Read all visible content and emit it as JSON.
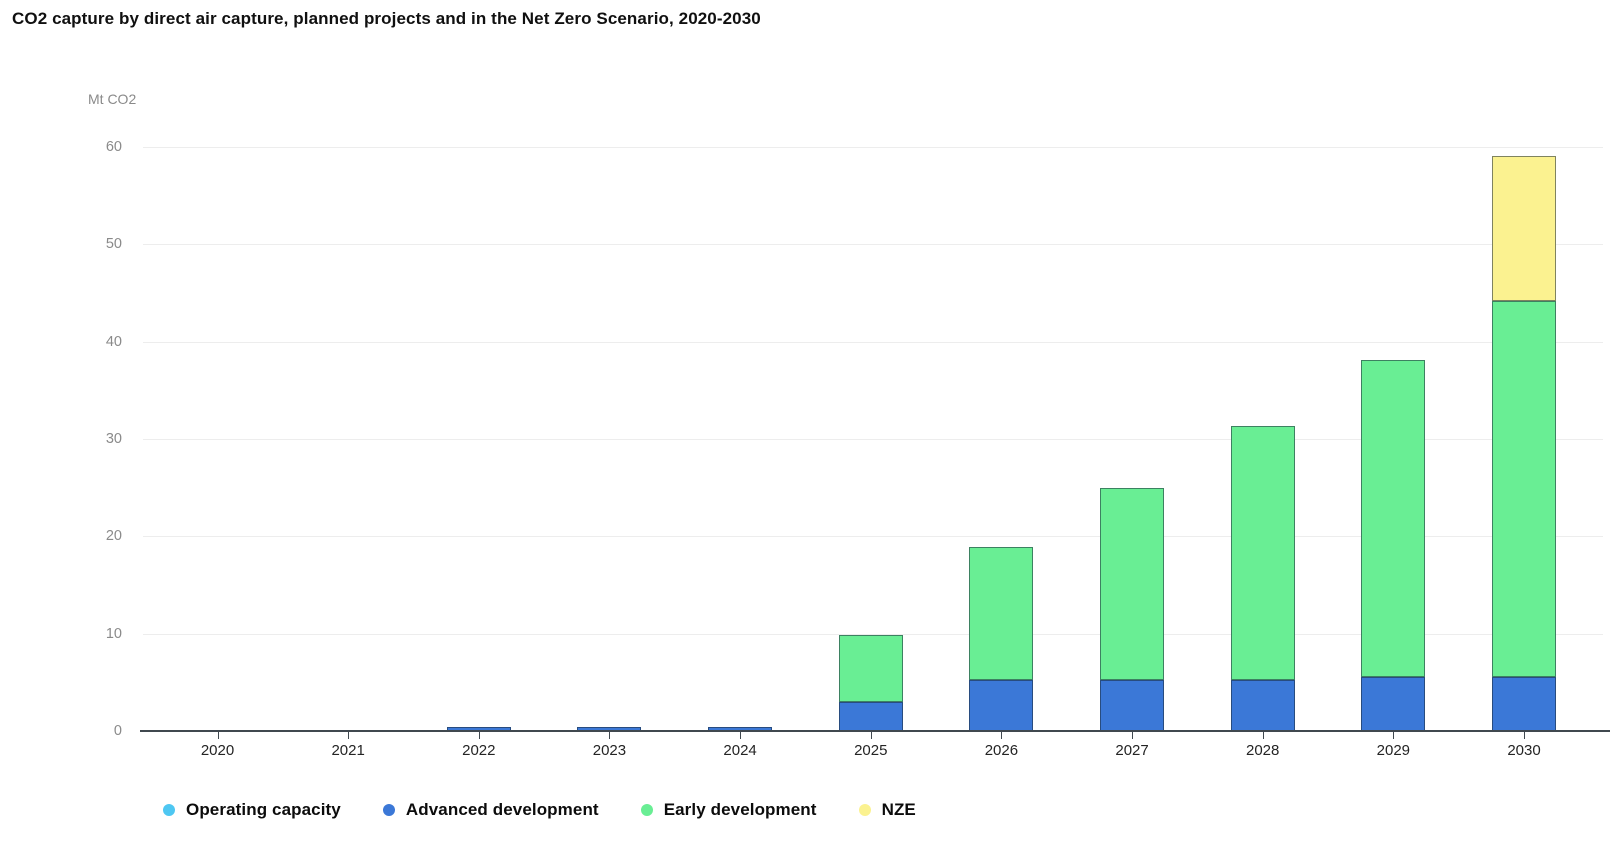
{
  "header": {
    "title": "CO2 capture by direct air capture, planned projects and in the Net Zero Scenario, 2020-2030"
  },
  "chart_data": {
    "type": "bar",
    "stacked": true,
    "title": "CO2 capture by direct air capture, planned projects and in the Net Zero Scenario, 2020-2030",
    "unit_label": "Mt CO2",
    "xlabel": "",
    "ylabel": "Mt CO2",
    "categories": [
      "2020",
      "2021",
      "2022",
      "2023",
      "2024",
      "2025",
      "2026",
      "2027",
      "2028",
      "2029",
      "2030"
    ],
    "series": [
      {
        "name": "Operating capacity",
        "color": "#4EC7F2",
        "values": [
          0,
          0,
          0,
          0,
          0,
          0,
          0,
          0,
          0,
          0,
          0
        ]
      },
      {
        "name": "Advanced development",
        "color": "#3B78D7",
        "values": [
          0,
          0,
          0.4,
          0.4,
          0.4,
          3.0,
          5.2,
          5.2,
          5.2,
          5.5,
          5.5
        ]
      },
      {
        "name": "Early development",
        "color": "#69EE94",
        "values": [
          0,
          0,
          0,
          0,
          0,
          6.9,
          13.7,
          19.8,
          26.1,
          32.6,
          38.7
        ]
      },
      {
        "name": "NZE",
        "color": "#FBF290",
        "values": [
          0,
          0,
          0,
          0,
          0,
          0,
          0,
          0,
          0,
          0,
          14.9
        ]
      }
    ],
    "ylim": [
      0,
      60
    ],
    "yticks": [
      0,
      10,
      20,
      30,
      40,
      50,
      60
    ],
    "grid": true,
    "legend_position": "bottom-left",
    "legend": [
      "Operating capacity",
      "Advanced development",
      "Early development",
      "NZE"
    ]
  },
  "colors": {
    "grid": "#ededed",
    "axis": "#40484f",
    "tick_label": "#8a8a8a",
    "category_label": "#242424"
  }
}
